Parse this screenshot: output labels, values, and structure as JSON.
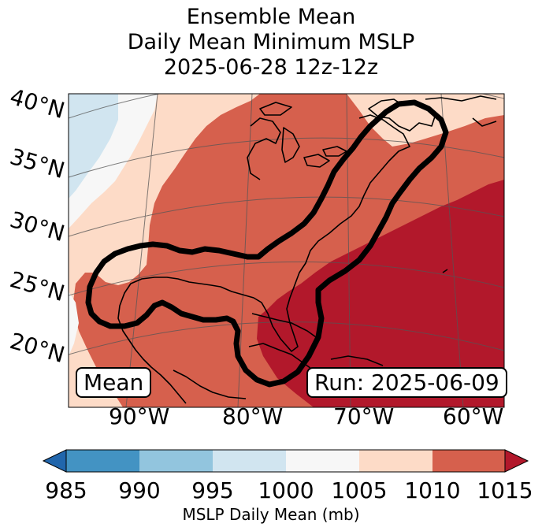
{
  "title": {
    "line1": "Ensemble Mean",
    "line2": "Daily Mean Minimum MSLP",
    "line3": "2025-06-28 12z-12z"
  },
  "latitude_labels": [
    "40°N",
    "35°N",
    "30°N",
    "25°N",
    "20°N"
  ],
  "longitude_labels": [
    "90°W",
    "80°W",
    "70°W",
    "60°W"
  ],
  "badges": {
    "left": "Mean",
    "right": "Run: 2025-06-09"
  },
  "colorbar": {
    "ticks": [
      "985",
      "990",
      "995",
      "1000",
      "1005",
      "1010",
      "1015"
    ],
    "label": "MSLP Daily Mean (mb)",
    "colors": [
      "#2166ac",
      "#4393c3",
      "#92c5de",
      "#d1e5f0",
      "#f7f7f7",
      "#fddbc7",
      "#d6604d",
      "#b2182b"
    ]
  },
  "map_colors": {
    "c995": "#d1e5f0",
    "c1000": "#f7f7f7",
    "c1005": "#fddbc7",
    "c1010": "#d6604d",
    "c1015": "#b2182b",
    "contour": "#000000"
  }
}
